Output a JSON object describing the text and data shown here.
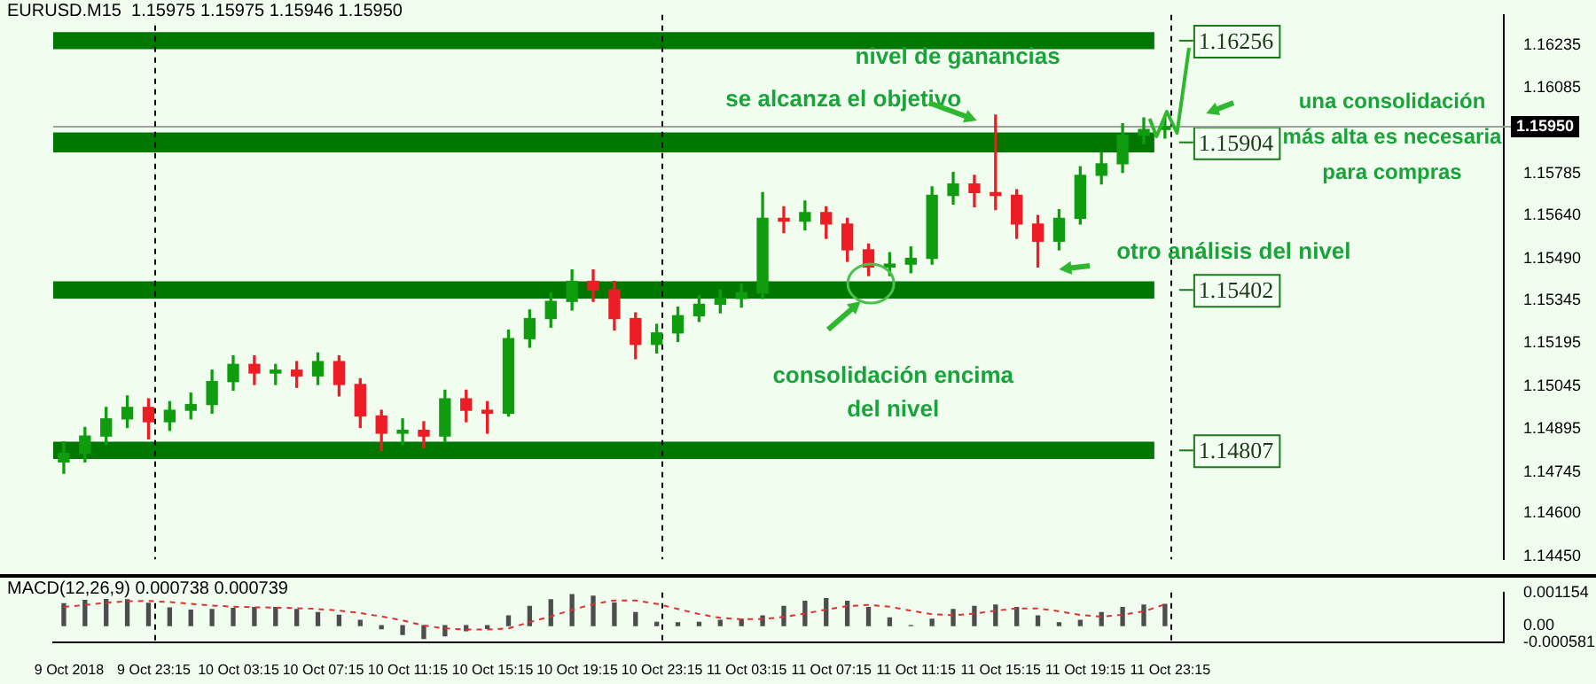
{
  "chart_data": [
    {
      "type": "candlestick",
      "title": "EURUSD.M15  1.15975 1.15975 1.15946 1.15950",
      "x": [
        "2018-10-09T19:00",
        "2018-10-09T20:00",
        "2018-10-09T21:00",
        "2018-10-09T22:00",
        "2018-10-09T23:00",
        "2018-10-10T00:00",
        "2018-10-10T01:00",
        "2018-10-10T02:00",
        "2018-10-10T03:00",
        "2018-10-10T04:00",
        "2018-10-10T05:00",
        "2018-10-10T06:00",
        "2018-10-10T07:00",
        "2018-10-10T08:00",
        "2018-10-10T09:00",
        "2018-10-10T10:00",
        "2018-10-10T11:00",
        "2018-10-10T12:00",
        "2018-10-10T13:00",
        "2018-10-10T14:00",
        "2018-10-10T15:00",
        "2018-10-10T16:00",
        "2018-10-10T17:00",
        "2018-10-10T18:00",
        "2018-10-10T19:00",
        "2018-10-10T20:00",
        "2018-10-10T21:00",
        "2018-10-10T22:00",
        "2018-10-10T23:00",
        "2018-10-11T00:00",
        "2018-10-11T01:00",
        "2018-10-11T02:00",
        "2018-10-11T03:00",
        "2018-10-11T04:00",
        "2018-10-11T05:00",
        "2018-10-11T06:00",
        "2018-10-11T07:00",
        "2018-10-11T08:00",
        "2018-10-11T09:00",
        "2018-10-11T10:00",
        "2018-10-11T11:00",
        "2018-10-11T12:00",
        "2018-10-11T13:00",
        "2018-10-11T14:00",
        "2018-10-11T15:00",
        "2018-10-11T16:00",
        "2018-10-11T17:00",
        "2018-10-11T18:00",
        "2018-10-11T19:00",
        "2018-10-11T20:00",
        "2018-10-11T21:00",
        "2018-10-11T22:00",
        "2018-10-11T23:00"
      ],
      "ohlc": [
        [
          1.1478,
          1.1485,
          1.1474,
          1.1481
        ],
        [
          1.1481,
          1.149,
          1.1478,
          1.1487
        ],
        [
          1.1487,
          1.1497,
          1.1484,
          1.1493
        ],
        [
          1.1493,
          1.1501,
          1.149,
          1.1497
        ],
        [
          1.1497,
          1.15,
          1.1486,
          1.1492
        ],
        [
          1.1492,
          1.1499,
          1.1489,
          1.1496
        ],
        [
          1.1496,
          1.1502,
          1.1493,
          1.1498
        ],
        [
          1.1498,
          1.151,
          1.1495,
          1.1506
        ],
        [
          1.1506,
          1.1515,
          1.1503,
          1.1512
        ],
        [
          1.1512,
          1.1515,
          1.1505,
          1.1509
        ],
        [
          1.1509,
          1.1512,
          1.1505,
          1.151
        ],
        [
          1.151,
          1.1513,
          1.1504,
          1.1508
        ],
        [
          1.1508,
          1.1516,
          1.1505,
          1.1513
        ],
        [
          1.1513,
          1.1515,
          1.1501,
          1.1505
        ],
        [
          1.1505,
          1.1507,
          1.149,
          1.1494
        ],
        [
          1.1494,
          1.1496,
          1.1482,
          1.1488
        ],
        [
          1.1488,
          1.1493,
          1.1484,
          1.1489
        ],
        [
          1.1489,
          1.1492,
          1.1483,
          1.1487
        ],
        [
          1.1487,
          1.1503,
          1.1485,
          1.15
        ],
        [
          1.15,
          1.1503,
          1.1492,
          1.1496
        ],
        [
          1.1496,
          1.1499,
          1.1488,
          1.1495
        ],
        [
          1.1495,
          1.1524,
          1.1494,
          1.1521
        ],
        [
          1.1521,
          1.1531,
          1.1518,
          1.1528
        ],
        [
          1.1528,
          1.1537,
          1.1525,
          1.1534
        ],
        [
          1.1534,
          1.1545,
          1.1531,
          1.1541
        ],
        [
          1.1541,
          1.1545,
          1.1534,
          1.1538
        ],
        [
          1.1538,
          1.1541,
          1.1524,
          1.1528
        ],
        [
          1.1528,
          1.153,
          1.1514,
          1.1519
        ],
        [
          1.1519,
          1.1526,
          1.1516,
          1.1523
        ],
        [
          1.1523,
          1.1532,
          1.152,
          1.1529
        ],
        [
          1.1529,
          1.1536,
          1.1527,
          1.1533
        ],
        [
          1.1533,
          1.1538,
          1.153,
          1.1535
        ],
        [
          1.1535,
          1.154,
          1.1532,
          1.1537
        ],
        [
          1.1537,
          1.1572,
          1.1535,
          1.1563
        ],
        [
          1.1563,
          1.1567,
          1.1558,
          1.1562
        ],
        [
          1.1562,
          1.1569,
          1.1559,
          1.1565
        ],
        [
          1.1565,
          1.1567,
          1.1556,
          1.1561
        ],
        [
          1.1561,
          1.1563,
          1.1548,
          1.1552
        ],
        [
          1.1552,
          1.1554,
          1.1543,
          1.1546
        ],
        [
          1.1546,
          1.1551,
          1.1543,
          1.1547
        ],
        [
          1.1547,
          1.1553,
          1.1544,
          1.1549
        ],
        [
          1.1549,
          1.1574,
          1.1547,
          1.1571
        ],
        [
          1.1571,
          1.1579,
          1.1568,
          1.1575
        ],
        [
          1.1575,
          1.1578,
          1.1567,
          1.1572
        ],
        [
          1.1572,
          1.1599,
          1.1566,
          1.1571
        ],
        [
          1.1571,
          1.1573,
          1.1556,
          1.1561
        ],
        [
          1.1561,
          1.1564,
          1.1546,
          1.1555
        ],
        [
          1.1555,
          1.1566,
          1.1552,
          1.1563
        ],
        [
          1.1563,
          1.1581,
          1.1561,
          1.1578
        ],
        [
          1.1578,
          1.1586,
          1.1575,
          1.1582
        ],
        [
          1.1582,
          1.1596,
          1.1579,
          1.1592
        ],
        [
          1.1592,
          1.1598,
          1.1589,
          1.1594
        ],
        [
          1.1594,
          1.1598,
          1.1591,
          1.1595
        ]
      ],
      "xlim": [
        "2018-10-09T18:30",
        "2018-10-12T15:00"
      ],
      "ylim": [
        1.1444,
        1.1634
      ],
      "yticks": [
        1.16235,
        1.16085,
        1.15785,
        {
          "value": 1.1564,
          "label": "1.15640"
        },
        {
          "value": 1.1549,
          "label": "1.15490"
        },
        1.15345,
        1.15195,
        1.15045,
        1.14895,
        1.14745,
        {
          "value": 1.146,
          "label": "1.14600"
        },
        {
          "value": 1.1445,
          "label": "1.14450"
        }
      ],
      "tick_labels": "y",
      "bands": [
        {
          "axis": "y",
          "from": 1.1622,
          "to": 1.1628,
          "label": "1.16256",
          "color": "#007800"
        },
        {
          "axis": "y",
          "from": 1.1586,
          "to": 1.1593,
          "label": "1.15904",
          "color": "#007800"
        },
        {
          "axis": "y",
          "from": 1.1535,
          "to": 1.1541,
          "label": "1.15402",
          "color": "#007800"
        },
        {
          "axis": "y",
          "from": 1.1479,
          "to": 1.1485,
          "label": "1.14807",
          "color": "#007800"
        }
      ],
      "ref_lines": [
        {
          "axis": "y",
          "value": 1.1595,
          "label": "1.15950",
          "color": "#a0a0a0",
          "line_style": "solid"
        },
        {
          "axis": "x",
          "value": "2018-10-09T23:15",
          "color": "#000000",
          "line_style": "dashed"
        },
        {
          "axis": "x",
          "value": "2018-10-10T23:15",
          "color": "#000000",
          "line_style": "dashed"
        },
        {
          "axis": "x",
          "value": "2018-10-11T23:15",
          "color": "#000000",
          "line_style": "dashed"
        }
      ],
      "annotations": [
        "nivel de ganancias",
        "se alcanza el objetivo",
        "consolidación encima del nivel",
        "otro análisis del nivel",
        "una consolidación más alta es necesaria para compras"
      ]
    },
    {
      "type": "bar",
      "title": "MACD(12,26,9) 0.000738 0.000739",
      "x": [
        "2018-10-09T19:00",
        "2018-10-09T20:00",
        "2018-10-09T21:00",
        "2018-10-09T22:00",
        "2018-10-09T23:00",
        "2018-10-10T00:00",
        "2018-10-10T01:00",
        "2018-10-10T02:00",
        "2018-10-10T03:00",
        "2018-10-10T04:00",
        "2018-10-10T05:00",
        "2018-10-10T06:00",
        "2018-10-10T07:00",
        "2018-10-10T08:00",
        "2018-10-10T09:00",
        "2018-10-10T10:00",
        "2018-10-10T11:00",
        "2018-10-10T12:00",
        "2018-10-10T13:00",
        "2018-10-10T14:00",
        "2018-10-10T15:00",
        "2018-10-10T16:00",
        "2018-10-10T17:00",
        "2018-10-10T18:00",
        "2018-10-10T19:00",
        "2018-10-10T20:00",
        "2018-10-10T21:00",
        "2018-10-10T22:00",
        "2018-10-10T23:00",
        "2018-10-11T00:00",
        "2018-10-11T01:00",
        "2018-10-11T02:00",
        "2018-10-11T03:00",
        "2018-10-11T04:00",
        "2018-10-11T05:00",
        "2018-10-11T06:00",
        "2018-10-11T07:00",
        "2018-10-11T08:00",
        "2018-10-11T09:00",
        "2018-10-11T10:00",
        "2018-10-11T11:00",
        "2018-10-11T12:00",
        "2018-10-11T13:00",
        "2018-10-11T14:00",
        "2018-10-11T15:00",
        "2018-10-11T16:00",
        "2018-10-11T17:00",
        "2018-10-11T18:00",
        "2018-10-11T19:00",
        "2018-10-11T20:00",
        "2018-10-11T21:00",
        "2018-10-11T22:00",
        "2018-10-11T23:00"
      ],
      "series": [
        {
          "type": "bar",
          "color": "#4d4d4d",
          "values": [
            0.00076,
            0.00088,
            0.00095,
            0.0009,
            0.00078,
            0.00062,
            0.00054,
            0.00056,
            0.0006,
            0.00063,
            0.00063,
            0.00056,
            0.00045,
            0.00036,
            0.00018,
            -0.00011,
            -0.00031,
            -0.00045,
            -0.00036,
            -0.00018,
            -0.0001,
            0.00034,
            0.00067,
            0.0009,
            0.00108,
            0.00103,
            0.00079,
            0.00045,
            0.00011,
            0.0001,
            0.00011,
            0.00018,
            0.00022,
            0.00034,
            0.00067,
            0.00085,
            0.00094,
            0.00085,
            0.00063,
            0.00027,
            0,
            0.00022,
            0.00056,
            0.00067,
            0.00072,
            0.00063,
            0.00034,
            0.0001,
            0.00018,
            0.00045,
            0.00063,
            0.00072,
            0.00074
          ]
        },
        {
          "type": "line",
          "color": "#e03030",
          "line_style": "dashed",
          "marker": "none",
          "values": [
            0.00065,
            0.00072,
            0.0008,
            0.00085,
            0.00086,
            0.00082,
            0.00076,
            0.0007,
            0.00066,
            0.00064,
            0.00063,
            0.00061,
            0.00058,
            0.00052,
            0.00044,
            0.00032,
            0.00018,
            0,
            -0.0001,
            -0.00014,
            -0.00014,
            -0.0001,
            0.00012,
            0.00032,
            0.00055,
            0.00075,
            0.00088,
            0.00088,
            0.00076,
            0.00058,
            0.0004,
            0.00027,
            0.00022,
            0.00023,
            0.0003,
            0.00042,
            0.00056,
            0.00068,
            0.00072,
            0.00066,
            0.00052,
            0.0004,
            0.00036,
            0.00042,
            0.00052,
            0.0006,
            0.0006,
            0.0005,
            0.00037,
            0.00031,
            0.00038,
            0.0005,
            0.00074
          ]
        }
      ],
      "xlim": [
        "2018-10-09T18:30",
        "2018-10-12T15:00"
      ],
      "xticks": [
        {
          "value": "2018-10-09T19:15",
          "label": "9 Oct 2018"
        },
        {
          "value": "2018-10-09T23:15",
          "label": "9 Oct 23:15"
        },
        {
          "value": "2018-10-10T03:15",
          "label": "10 Oct 03:15"
        },
        {
          "value": "2018-10-10T07:15",
          "label": "10 Oct 07:15"
        },
        {
          "value": "2018-10-10T11:15",
          "label": "10 Oct 11:15"
        },
        {
          "value": "2018-10-10T15:15",
          "label": "10 Oct 15:15"
        },
        {
          "value": "2018-10-10T19:15",
          "label": "10 Oct 19:15"
        },
        {
          "value": "2018-10-10T23:15",
          "label": "10 Oct 23:15"
        },
        {
          "value": "2018-10-11T03:15",
          "label": "11 Oct 03:15"
        },
        {
          "value": "2018-10-11T07:15",
          "label": "11 Oct 07:15"
        },
        {
          "value": "2018-10-11T11:15",
          "label": "11 Oct 11:15"
        },
        {
          "value": "2018-10-11T15:15",
          "label": "11 Oct 15:15"
        },
        {
          "value": "2018-10-11T19:15",
          "label": "11 Oct 19:15"
        },
        {
          "value": "2018-10-11T23:15",
          "label": "11 Oct 23:15"
        }
      ],
      "ylim": [
        -0.000581,
        0.001154
      ],
      "yticks": [
        0.001154,
        {
          "value": 0,
          "label": "0.00"
        },
        -0.000581
      ],
      "ref_lines": [
        {
          "axis": "x",
          "value": "2018-10-09T23:15",
          "color": "#000000",
          "line_style": "dashed"
        },
        {
          "axis": "x",
          "value": "2018-10-10T23:15",
          "color": "#000000",
          "line_style": "dashed"
        },
        {
          "axis": "x",
          "value": "2018-10-11T23:15",
          "color": "#000000",
          "line_style": "dashed"
        }
      ]
    }
  ]
}
